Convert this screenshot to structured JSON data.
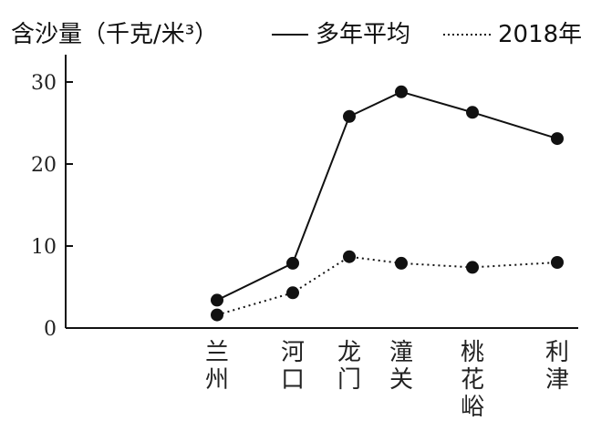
{
  "chart_data": {
    "type": "line",
    "title": "含沙量（千克/米³）",
    "categories": [
      "兰州",
      "河口",
      "龙门",
      "潼关",
      "桃花峪",
      "利津"
    ],
    "ylim": [
      0,
      30
    ],
    "yticks": [
      0,
      10,
      20,
      30
    ],
    "grid": false,
    "legend_position": "top-right",
    "series": [
      {
        "name": "多年平均",
        "style": "solid",
        "color": "#111111",
        "values": [
          3.4,
          7.9,
          25.8,
          28.8,
          26.3,
          23.1
        ]
      },
      {
        "name": "2018年",
        "style": "dotted",
        "color": "#111111",
        "values": [
          1.6,
          4.3,
          8.7,
          7.9,
          7.4,
          8.0
        ]
      }
    ]
  }
}
